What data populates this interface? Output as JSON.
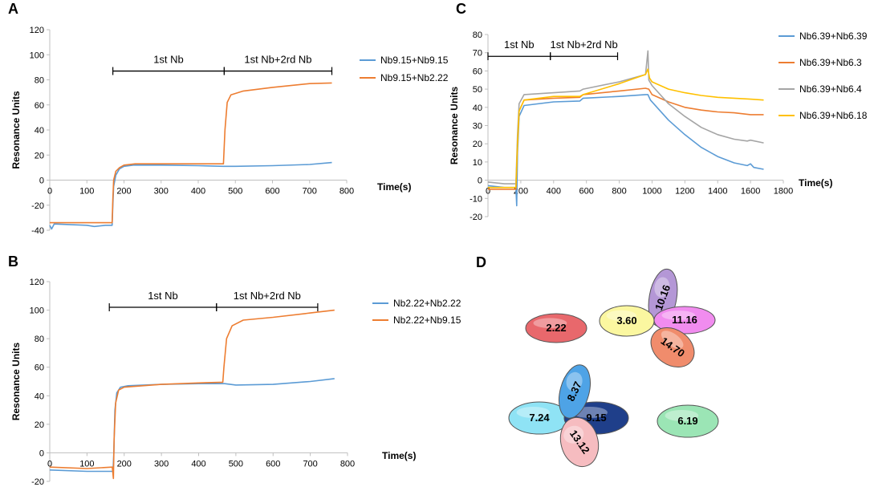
{
  "chart_data": [
    {
      "panel": "A",
      "type": "line",
      "xlabel": "Time(s)",
      "ylabel": "Resonance Units",
      "xlim": [
        0,
        800
      ],
      "ylim": [
        -40,
        120
      ],
      "xticks": [
        0,
        100,
        200,
        300,
        400,
        500,
        600,
        700,
        800
      ],
      "yticks": [
        -40,
        -20,
        0,
        20,
        40,
        60,
        80,
        100,
        120
      ],
      "annotations": [
        {
          "label": "1st Nb",
          "x_start": 170,
          "x_end": 470,
          "y": 87
        },
        {
          "label": "1st Nb+2rd Nb",
          "x_start": 470,
          "x_end": 760,
          "y": 87
        }
      ],
      "series": [
        {
          "name": "Nb9.15+Nb9.15",
          "color": "#5b9bd5",
          "points": [
            [
              0,
              -36
            ],
            [
              5,
              -39
            ],
            [
              12,
              -35
            ],
            [
              100,
              -36
            ],
            [
              120,
              -37
            ],
            [
              150,
              -36
            ],
            [
              168,
              -36
            ],
            [
              170,
              -20
            ],
            [
              172,
              -5
            ],
            [
              178,
              4
            ],
            [
              188,
              9
            ],
            [
              200,
              11
            ],
            [
              225,
              12
            ],
            [
              300,
              12
            ],
            [
              400,
              11.5
            ],
            [
              468,
              11
            ],
            [
              500,
              11
            ],
            [
              600,
              11.5
            ],
            [
              700,
              12.5
            ],
            [
              760,
              14
            ]
          ]
        },
        {
          "name": "Nb9.15+Nb2.22",
          "color": "#ed7d31",
          "points": [
            [
              0,
              -34
            ],
            [
              100,
              -34
            ],
            [
              150,
              -34
            ],
            [
              168,
              -34
            ],
            [
              170,
              -15
            ],
            [
              172,
              0
            ],
            [
              178,
              7
            ],
            [
              188,
              10
            ],
            [
              200,
              12
            ],
            [
              230,
              13
            ],
            [
              300,
              13
            ],
            [
              400,
              13
            ],
            [
              468,
              13
            ],
            [
              472,
              40
            ],
            [
              478,
              62
            ],
            [
              488,
              68
            ],
            [
              520,
              71
            ],
            [
              600,
              74
            ],
            [
              700,
              77
            ],
            [
              760,
              77.5
            ]
          ]
        }
      ]
    },
    {
      "panel": "B",
      "type": "line",
      "xlabel": "Time(s)",
      "ylabel": "Resonance Units",
      "xlim": [
        0,
        800
      ],
      "ylim": [
        -20,
        120
      ],
      "xticks": [
        0,
        100,
        200,
        300,
        400,
        500,
        600,
        700,
        800
      ],
      "yticks": [
        -20,
        0,
        20,
        40,
        60,
        80,
        100,
        120
      ],
      "annotations": [
        {
          "label": "1st Nb",
          "x_start": 160,
          "x_end": 448,
          "y": 102
        },
        {
          "label": "1st Nb+2rd Nb",
          "x_start": 448,
          "x_end": 720,
          "y": 102
        }
      ],
      "series": [
        {
          "name": "Nb2.22+Nb2.22",
          "color": "#5b9bd5",
          "points": [
            [
              0,
              -12
            ],
            [
              100,
              -13
            ],
            [
              170,
              -13
            ],
            [
              172,
              0
            ],
            [
              175,
              30
            ],
            [
              180,
              42
            ],
            [
              190,
              46
            ],
            [
              210,
              47
            ],
            [
              300,
              48
            ],
            [
              400,
              48.5
            ],
            [
              470,
              48.5
            ],
            [
              500,
              47.5
            ],
            [
              600,
              48
            ],
            [
              700,
              50
            ],
            [
              765,
              52
            ]
          ]
        },
        {
          "name": "Nb2.22+Nb9.15",
          "color": "#ed7d31",
          "points": [
            [
              0,
              -10
            ],
            [
              100,
              -11
            ],
            [
              168,
              -10
            ],
            [
              171,
              -18
            ],
            [
              173,
              10
            ],
            [
              177,
              35
            ],
            [
              185,
              44
            ],
            [
              200,
              46
            ],
            [
              300,
              48
            ],
            [
              400,
              49
            ],
            [
              465,
              49.5
            ],
            [
              468,
              60
            ],
            [
              475,
              80
            ],
            [
              490,
              89
            ],
            [
              520,
              93
            ],
            [
              600,
              95
            ],
            [
              700,
              98
            ],
            [
              765,
              100
            ]
          ]
        }
      ]
    },
    {
      "panel": "C",
      "type": "line",
      "xlabel": "Time(s)",
      "ylabel": "Resonance Units",
      "xlim": [
        0,
        1800
      ],
      "ylim": [
        -20,
        80
      ],
      "xticks": [
        0,
        200,
        400,
        600,
        800,
        1000,
        1200,
        1400,
        1600,
        1800
      ],
      "yticks": [
        -20,
        -10,
        0,
        10,
        20,
        30,
        40,
        50,
        60,
        70,
        80
      ],
      "annotations": [
        {
          "label": "1st Nb",
          "x_start": 0,
          "x_end": 380,
          "y": 68
        },
        {
          "label": "1st Nb+2rd Nb",
          "x_start": 380,
          "x_end": 790,
          "y": 68
        }
      ],
      "series": [
        {
          "name": "Nb6.39+Nb6.39",
          "color": "#5b9bd5",
          "points": [
            [
              0,
              -3
            ],
            [
              100,
              -4
            ],
            [
              170,
              -4
            ],
            [
              175,
              -14
            ],
            [
              180,
              15
            ],
            [
              190,
              35
            ],
            [
              220,
              41
            ],
            [
              400,
              43
            ],
            [
              560,
              43.5
            ],
            [
              580,
              45
            ],
            [
              800,
              46
            ],
            [
              960,
              47
            ],
            [
              975,
              47
            ],
            [
              990,
              44
            ],
            [
              1100,
              33
            ],
            [
              1200,
              25
            ],
            [
              1300,
              18
            ],
            [
              1400,
              13
            ],
            [
              1500,
              9.5
            ],
            [
              1580,
              8
            ],
            [
              1600,
              9
            ],
            [
              1620,
              7
            ],
            [
              1680,
              6
            ]
          ]
        },
        {
          "name": "Nb6.39+Nb6.3",
          "color": "#ed7d31",
          "points": [
            [
              0,
              -5
            ],
            [
              100,
              -5
            ],
            [
              170,
              -5
            ],
            [
              180,
              20
            ],
            [
              190,
              38
            ],
            [
              220,
              44
            ],
            [
              400,
              45
            ],
            [
              560,
              45.5
            ],
            [
              580,
              47
            ],
            [
              800,
              49
            ],
            [
              960,
              50.5
            ],
            [
              980,
              50
            ],
            [
              1000,
              47
            ],
            [
              1100,
              43
            ],
            [
              1200,
              40
            ],
            [
              1300,
              38.5
            ],
            [
              1400,
              37.5
            ],
            [
              1500,
              37
            ],
            [
              1600,
              36
            ],
            [
              1680,
              36
            ]
          ]
        },
        {
          "name": "Nb6.39+Nb6.4",
          "color": "#a5a5a5",
          "points": [
            [
              0,
              -1
            ],
            [
              100,
              -2
            ],
            [
              170,
              -2
            ],
            [
              180,
              25
            ],
            [
              190,
              42
            ],
            [
              220,
              47
            ],
            [
              400,
              48
            ],
            [
              560,
              49
            ],
            [
              580,
              50
            ],
            [
              800,
              54
            ],
            [
              960,
              58
            ],
            [
              975,
              71
            ],
            [
              980,
              55
            ],
            [
              1000,
              52
            ],
            [
              1100,
              42
            ],
            [
              1200,
              35
            ],
            [
              1300,
              29
            ],
            [
              1400,
              25
            ],
            [
              1500,
              22.5
            ],
            [
              1580,
              21.5
            ],
            [
              1600,
              22
            ],
            [
              1680,
              20.5
            ]
          ]
        },
        {
          "name": "Nb6.39+Nb6.18",
          "color": "#ffc000",
          "points": [
            [
              0,
              -4
            ],
            [
              100,
              -4
            ],
            [
              170,
              -4
            ],
            [
              180,
              20
            ],
            [
              190,
              38
            ],
            [
              220,
              44
            ],
            [
              400,
              46
            ],
            [
              560,
              46
            ],
            [
              580,
              47
            ],
            [
              800,
              53
            ],
            [
              960,
              58
            ],
            [
              975,
              61
            ],
            [
              985,
              56
            ],
            [
              1000,
              54
            ],
            [
              1100,
              50
            ],
            [
              1200,
              48
            ],
            [
              1300,
              46.5
            ],
            [
              1400,
              45.5
            ],
            [
              1500,
              45
            ],
            [
              1600,
              44.5
            ],
            [
              1680,
              44
            ]
          ]
        }
      ]
    },
    {
      "panel": "D",
      "type": "diagram",
      "ellipses": [
        {
          "label": "2.22",
          "color": "#e8686c"
        },
        {
          "label": "3.60",
          "color": "#fbf7a0"
        },
        {
          "label": "10.16",
          "color": "#b497d6"
        },
        {
          "label": "11.16",
          "color": "#f18cef"
        },
        {
          "label": "14.70",
          "color": "#f08c6c"
        },
        {
          "label": "8.37",
          "color": "#4ea3e6"
        },
        {
          "label": "7.24",
          "color": "#8fe3f5"
        },
        {
          "label": "9.15",
          "color": "#1f3f8a"
        },
        {
          "label": "13.12",
          "color": "#f6bcc0"
        },
        {
          "label": "6.19",
          "color": "#9be5b5"
        }
      ]
    }
  ]
}
